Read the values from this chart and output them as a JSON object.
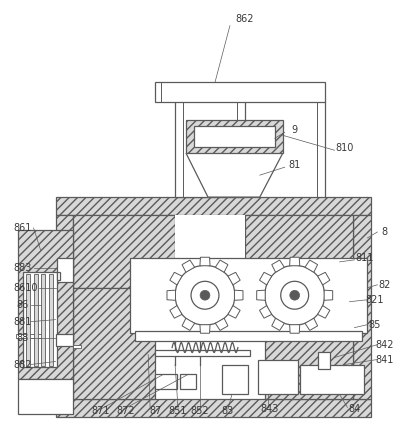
{
  "bg_color": "#ffffff",
  "line_color": "#5a5a5a",
  "hatch_color": "#5a5a5a",
  "label_color": "#3a3a3a",
  "label_fontsize": 7.0,
  "fig_width": 4.05,
  "fig_height": 4.43,
  "dpi": 100
}
